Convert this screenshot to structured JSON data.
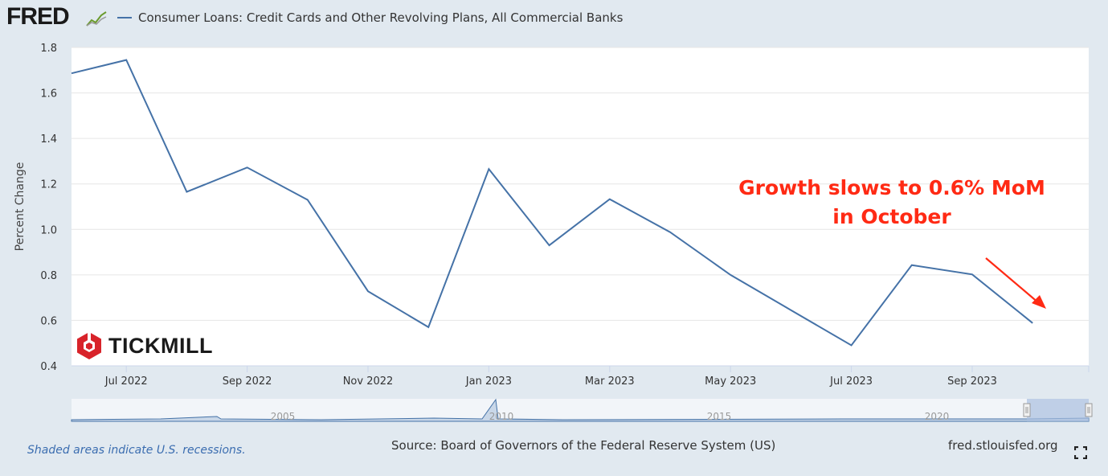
{
  "header": {
    "logo_text": "FRED",
    "logo_icon": "chart-line-icon",
    "series_title": "Consumer Loans: Credit Cards and Other Revolving Plans, All Commercial Banks",
    "line_color": "#4572a7"
  },
  "chart_data": {
    "type": "line",
    "title": "Consumer Loans: Credit Cards and Other Revolving Plans, All Commercial Banks",
    "ylabel": "Percent Change",
    "xlabel": "",
    "ylim": [
      0.4,
      1.8
    ],
    "yticks": [
      "0.4",
      "0.6",
      "0.8",
      "1.0",
      "1.2",
      "1.4",
      "1.6",
      "1.8"
    ],
    "grid": true,
    "x_tick_labels": [
      "Jul 2022",
      "Sep 2022",
      "Nov 2022",
      "Jan 2023",
      "Mar 2023",
      "May 2023",
      "Jul 2023",
      "Sep 2023"
    ],
    "series": [
      {
        "name": "Consumer Loans: Credit Cards and Other Revolving Plans, All Commercial Banks",
        "color": "#4572a7",
        "x": [
          "2022-06",
          "2022-07",
          "2022-08",
          "2022-09",
          "2022-10",
          "2022-11",
          "2022-12",
          "2023-01",
          "2023-02",
          "2023-03",
          "2023-04",
          "2023-05",
          "2023-06",
          "2023-07",
          "2023-08",
          "2023-09",
          "2023-10"
        ],
        "values": [
          1.68,
          1.745,
          1.165,
          1.272,
          1.13,
          0.728,
          0.57,
          1.265,
          0.93,
          1.133,
          0.988,
          0.8,
          0.645,
          0.49,
          0.843,
          0.802,
          0.588
        ]
      }
    ],
    "navigator": {
      "tick_labels": [
        "2005",
        "2010",
        "2015",
        "2020"
      ]
    }
  },
  "annotation": {
    "line1": "Growth slows to 0.6% MoM",
    "line2": "in October",
    "color": "#ff2a14"
  },
  "watermark": {
    "text": "TICKMILL",
    "logo_color": "#d8232a"
  },
  "footer": {
    "note": "Shaded areas indicate U.S. recessions.",
    "source": "Source: Board of Governors of the Federal Reserve System (US)",
    "url": "fred.stlouisfed.org",
    "fullscreen_icon": "fullscreen-icon"
  }
}
